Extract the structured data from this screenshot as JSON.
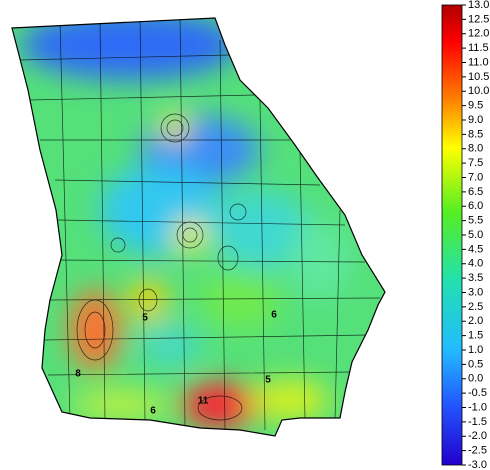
{
  "map": {
    "region": "Georgia",
    "contour_labels": [
      8,
      6,
      11,
      5,
      6,
      5
    ]
  },
  "colorbar": {
    "lim": [
      -3,
      13
    ],
    "ticks": [
      {
        "value": 13,
        "label": "13.0"
      },
      12.5,
      {
        "value": 12,
        "label": "12.0"
      },
      11.5,
      {
        "value": 11,
        "label": "11.0"
      },
      10.5,
      {
        "value": 10,
        "label": "10.0"
      },
      9.5,
      {
        "value": 9,
        "label": "9.0"
      },
      8.5,
      {
        "value": 8,
        "label": "8.0"
      },
      7.5,
      {
        "value": 7,
        "label": "7.0"
      },
      6.5,
      {
        "value": 6,
        "label": "6.0"
      },
      5.5,
      {
        "value": 5,
        "label": "5.0"
      },
      4.5,
      {
        "value": 4,
        "label": "4.0"
      },
      3.5,
      {
        "value": 3,
        "label": "3.0"
      },
      2.5,
      {
        "value": 2,
        "label": "2.0"
      },
      1.5,
      {
        "value": 1,
        "label": "1.0"
      },
      0.5,
      {
        "value": 0,
        "label": "0.0"
      },
      -0.5,
      {
        "value": -1,
        "label": "-1.0"
      },
      -1.5,
      {
        "value": -2,
        "label": "-2.0"
      },
      -2.5,
      {
        "value": -3,
        "label": "-3.0"
      }
    ]
  }
}
